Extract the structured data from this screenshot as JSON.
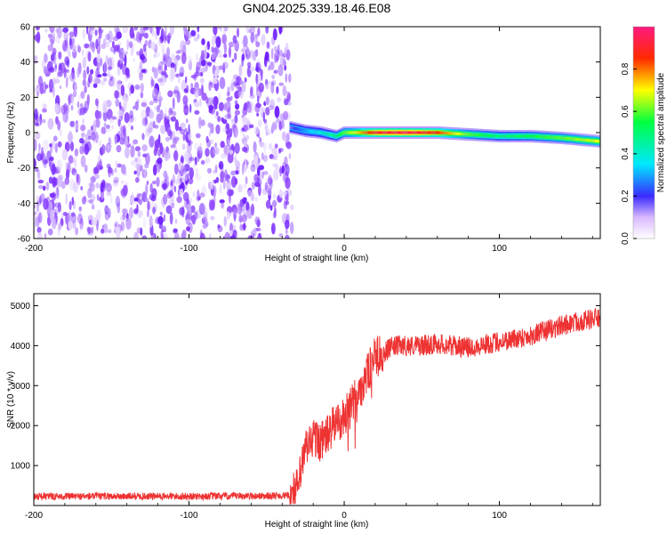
{
  "title": "GN04.2025.339.18.46.E08",
  "chart_data": [
    {
      "type": "heatmap",
      "title": "GN04.2025.339.18.46.E08",
      "xlabel": "Height of straight line (km)",
      "ylabel": "Frequency (Hz)",
      "xlim": [
        -200,
        165
      ],
      "ylim": [
        -60,
        60
      ],
      "xticks": [
        "-200",
        "-100",
        "0",
        "100"
      ],
      "yticks": [
        "60",
        "40",
        "20",
        "0",
        "-20",
        "-40",
        "-60"
      ],
      "noise_region_x": [
        -200,
        -35
      ],
      "signal_track": {
        "x": [
          -35,
          -25,
          -15,
          -5,
          0,
          10,
          20,
          40,
          60,
          80,
          100,
          120,
          140,
          165
        ],
        "freq": [
          3,
          1,
          0,
          -2,
          0,
          0,
          0,
          0,
          0,
          -1,
          -2,
          -2,
          -3,
          -5
        ],
        "amplitude": [
          0.15,
          0.3,
          0.4,
          0.5,
          0.6,
          0.75,
          0.9,
          0.95,
          0.85,
          0.6,
          0.5,
          0.55,
          0.6,
          0.7
        ]
      },
      "colorbar": {
        "label": "Normalized spectral amplitude",
        "range": [
          0.0,
          1.0
        ],
        "ticks": [
          "0.0",
          "0.2",
          "0.4",
          "0.6",
          "0.8"
        ]
      }
    },
    {
      "type": "line",
      "xlabel": "Height of straight line (km)",
      "ylabel": "SNR (10 * v/v)",
      "xlim": [
        -200,
        165
      ],
      "ylim": [
        0,
        5300
      ],
      "xticks": [
        "-200",
        "-100",
        "0",
        "100"
      ],
      "yticks": [
        "5000",
        "4000",
        "3000",
        "2000",
        "1000"
      ],
      "series": [
        {
          "name": "SNR",
          "color": "#ee3333",
          "x": [
            -200,
            -150,
            -100,
            -50,
            -35,
            -30,
            -25,
            -20,
            -15,
            -10,
            -5,
            0,
            5,
            10,
            20,
            25,
            30,
            35,
            50,
            60,
            80,
            100,
            120,
            140,
            150,
            165
          ],
          "y": [
            230,
            230,
            230,
            240,
            250,
            450,
            1400,
            1700,
            1600,
            1800,
            2100,
            2200,
            2500,
            2900,
            3700,
            3800,
            3950,
            4000,
            4000,
            4050,
            3950,
            4100,
            4250,
            4500,
            4600,
            4700
          ]
        }
      ]
    }
  ]
}
